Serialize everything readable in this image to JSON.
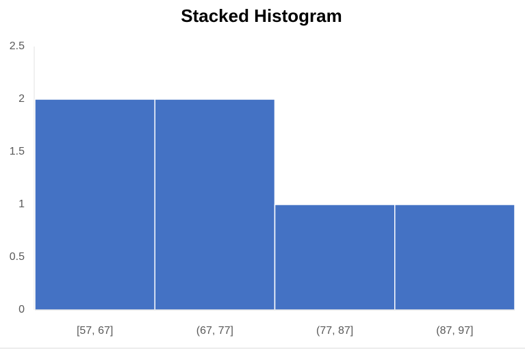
{
  "chart_data": {
    "type": "bar",
    "title": "Stacked Histogram",
    "categories": [
      "[57, 67]",
      "(67, 77]",
      "(77, 87]",
      "(87, 97]"
    ],
    "values": [
      2,
      2,
      1,
      1
    ],
    "color": "#4472c4",
    "ylim": [
      0,
      2.5
    ],
    "yticks": [
      0,
      0.5,
      1,
      1.5,
      2,
      2.5
    ],
    "grid": false
  }
}
